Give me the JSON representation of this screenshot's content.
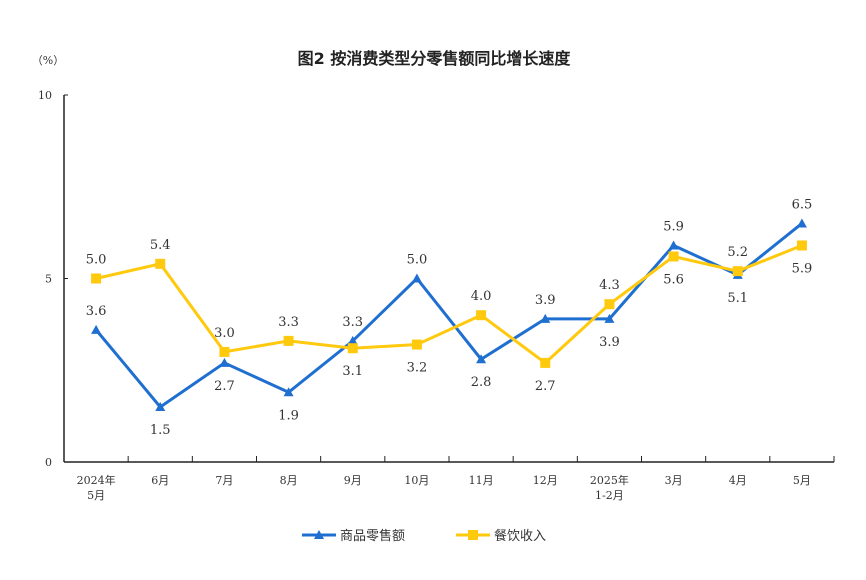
{
  "chart_data": {
    "type": "line",
    "title": "图2 按消费类型分零售额同比增长速度",
    "ylabel": "（%）",
    "ylim": [
      0,
      10
    ],
    "yticks": [
      "0",
      "5",
      "10"
    ],
    "categories": [
      [
        "2024年",
        "5月"
      ],
      [
        "6月"
      ],
      [
        "7月"
      ],
      [
        "8月"
      ],
      [
        "9月"
      ],
      [
        "10月"
      ],
      [
        "11月"
      ],
      [
        "12月"
      ],
      [
        "2025年",
        "1-2月"
      ],
      [
        "3月"
      ],
      [
        "4月"
      ],
      [
        "5月"
      ]
    ],
    "grid": false,
    "legend_position": "bottom",
    "series": [
      {
        "name": "商品零售额",
        "color": "#1f6fd1",
        "marker": "triangle",
        "values": [
          3.6,
          1.5,
          2.7,
          1.9,
          3.3,
          5.0,
          2.8,
          3.9,
          3.9,
          5.9,
          5.1,
          6.5
        ],
        "labels": [
          "3.6",
          "1.5",
          "2.7",
          "1.9",
          "3.3",
          "5.0",
          "2.8",
          "3.9",
          "3.9",
          "5.9",
          "5.1",
          "6.5"
        ]
      },
      {
        "name": "餐饮收入",
        "color": "#ffc90e",
        "marker": "square",
        "values": [
          5.0,
          5.4,
          3.0,
          3.3,
          3.1,
          3.2,
          4.0,
          2.7,
          4.3,
          5.6,
          5.2,
          5.9
        ],
        "labels": [
          "5.0",
          "5.4",
          "3.0",
          "3.3",
          "3.1",
          "3.2",
          "4.0",
          "2.7",
          "4.3",
          "5.6",
          "5.2",
          "5.9"
        ]
      }
    ]
  }
}
